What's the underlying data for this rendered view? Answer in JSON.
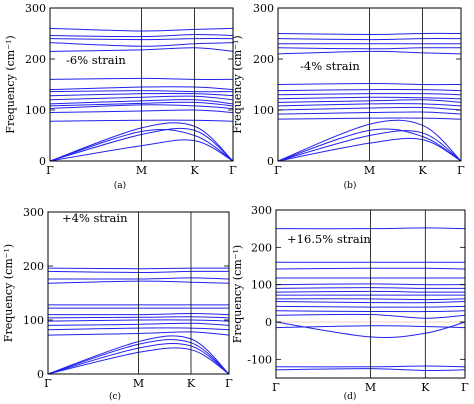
{
  "chart_data": [
    {
      "type": "line",
      "panel_label": "(a)",
      "annotation": "-6% strain",
      "ylabel": "Frequency (cm⁻¹)",
      "ylim": [
        0,
        300
      ],
      "yticks": [
        0,
        100,
        200,
        300
      ],
      "x_ticks": [
        "Γ",
        "M",
        "K",
        "Γ"
      ],
      "x": [
        0,
        0.5,
        0.79,
        1
      ],
      "series": [
        {
          "values": [
            0,
            52,
            60,
            0
          ]
        },
        {
          "values": [
            0,
            30,
            40,
            0
          ]
        },
        {
          "values": [
            0,
            58,
            50,
            0
          ]
        },
        {
          "values": [
            0,
            65,
            68,
            0
          ]
        },
        {
          "values": [
            78,
            80,
            80,
            78
          ]
        },
        {
          "values": [
            95,
            98,
            100,
            95
          ]
        },
        {
          "values": [
            103,
            110,
            108,
            103
          ]
        },
        {
          "values": [
            108,
            113,
            115,
            108
          ]
        },
        {
          "values": [
            112,
            118,
            120,
            112
          ]
        },
        {
          "values": [
            120,
            125,
            127,
            120
          ]
        },
        {
          "values": [
            128,
            132,
            132,
            128
          ]
        },
        {
          "values": [
            136,
            138,
            136,
            136
          ]
        },
        {
          "values": [
            140,
            145,
            145,
            140
          ]
        },
        {
          "values": [
            160,
            162,
            160,
            160
          ]
        },
        {
          "values": [
            215,
            218,
            222,
            215
          ]
        },
        {
          "values": [
            232,
            225,
            230,
            232
          ]
        },
        {
          "values": [
            240,
            238,
            240,
            240
          ]
        },
        {
          "values": [
            246,
            244,
            248,
            246
          ]
        },
        {
          "values": [
            260,
            255,
            258,
            260
          ]
        }
      ]
    },
    {
      "type": "line",
      "panel_label": "(b)",
      "annotation": "-4% strain",
      "ylabel": "Frequency (cm⁻¹)",
      "ylim": [
        0,
        300
      ],
      "yticks": [
        0,
        100,
        200,
        300
      ],
      "x_ticks": [
        "Γ",
        "M",
        "K",
        "Γ"
      ],
      "x": [
        0,
        0.5,
        0.79,
        1
      ],
      "series": [
        {
          "values": [
            0,
            50,
            55,
            0
          ]
        },
        {
          "values": [
            0,
            35,
            42,
            0
          ]
        },
        {
          "values": [
            0,
            60,
            48,
            0
          ]
        },
        {
          "values": [
            0,
            72,
            70,
            0
          ]
        },
        {
          "values": [
            82,
            84,
            84,
            82
          ]
        },
        {
          "values": [
            92,
            95,
            96,
            92
          ]
        },
        {
          "values": [
            100,
            104,
            105,
            100
          ]
        },
        {
          "values": [
            108,
            112,
            112,
            108
          ]
        },
        {
          "values": [
            115,
            118,
            120,
            115
          ]
        },
        {
          "values": [
            122,
            125,
            124,
            122
          ]
        },
        {
          "values": [
            130,
            132,
            132,
            130
          ]
        },
        {
          "values": [
            138,
            140,
            140,
            138
          ]
        },
        {
          "values": [
            150,
            152,
            150,
            150
          ]
        },
        {
          "values": [
            210,
            215,
            212,
            210
          ]
        },
        {
          "values": [
            222,
            220,
            222,
            222
          ]
        },
        {
          "values": [
            230,
            230,
            230,
            230
          ]
        },
        {
          "values": [
            240,
            238,
            240,
            240
          ]
        },
        {
          "values": [
            250,
            248,
            250,
            250
          ]
        }
      ]
    },
    {
      "type": "line",
      "panel_label": "(c)",
      "annotation": "+4% strain",
      "ylabel": "Frequency (cm⁻¹)",
      "ylim": [
        0,
        300
      ],
      "yticks": [
        0,
        100,
        200,
        300
      ],
      "x_ticks": [
        "Γ",
        "M",
        "K",
        "Γ"
      ],
      "x": [
        0,
        0.5,
        0.79,
        1
      ],
      "series": [
        {
          "values": [
            0,
            48,
            52,
            0
          ]
        },
        {
          "values": [
            0,
            40,
            45,
            0
          ]
        },
        {
          "values": [
            0,
            55,
            58,
            0
          ]
        },
        {
          "values": [
            0,
            60,
            65,
            0
          ]
        },
        {
          "values": [
            72,
            75,
            78,
            72
          ]
        },
        {
          "values": [
            82,
            85,
            85,
            82
          ]
        },
        {
          "values": [
            90,
            92,
            94,
            90
          ]
        },
        {
          "values": [
            98,
            100,
            100,
            98
          ]
        },
        {
          "values": [
            104,
            105,
            106,
            104
          ]
        },
        {
          "values": [
            110,
            110,
            112,
            110
          ]
        },
        {
          "values": [
            122,
            122,
            122,
            122
          ]
        },
        {
          "values": [
            128,
            128,
            128,
            128
          ]
        },
        {
          "values": [
            168,
            172,
            170,
            168
          ]
        },
        {
          "values": [
            176,
            176,
            178,
            176
          ]
        },
        {
          "values": [
            190,
            188,
            190,
            190
          ]
        },
        {
          "values": [
            196,
            195,
            196,
            196
          ]
        }
      ]
    },
    {
      "type": "line",
      "panel_label": "(d)",
      "annotation": "+16.5% strain",
      "ylabel": "Frequency (cm⁻¹)",
      "ylim": [
        -150,
        300
      ],
      "yticks": [
        -100,
        0,
        100,
        200,
        300
      ],
      "x_ticks": [
        "Γ",
        "M",
        "K",
        "Γ"
      ],
      "x": [
        0,
        0.5,
        0.79,
        1
      ],
      "series": [
        {
          "values": [
            -128,
            -125,
            -130,
            -128
          ]
        },
        {
          "values": [
            -120,
            -120,
            -118,
            -120
          ]
        },
        {
          "values": [
            0,
            -40,
            -30,
            0
          ]
        },
        {
          "values": [
            -15,
            -10,
            -12,
            -15
          ]
        },
        {
          "values": [
            18,
            20,
            10,
            18
          ]
        },
        {
          "values": [
            30,
            28,
            28,
            30
          ]
        },
        {
          "values": [
            42,
            40,
            40,
            42
          ]
        },
        {
          "values": [
            55,
            52,
            52,
            55
          ]
        },
        {
          "values": [
            62,
            62,
            60,
            62
          ]
        },
        {
          "values": [
            72,
            72,
            72,
            72
          ]
        },
        {
          "values": [
            80,
            82,
            80,
            80
          ]
        },
        {
          "values": [
            90,
            92,
            90,
            90
          ]
        },
        {
          "values": [
            100,
            102,
            100,
            100
          ]
        },
        {
          "values": [
            118,
            118,
            118,
            118
          ]
        },
        {
          "values": [
            142,
            144,
            144,
            142
          ]
        },
        {
          "values": [
            160,
            160,
            160,
            160
          ]
        },
        {
          "values": [
            250,
            250,
            252,
            250
          ]
        }
      ]
    }
  ]
}
